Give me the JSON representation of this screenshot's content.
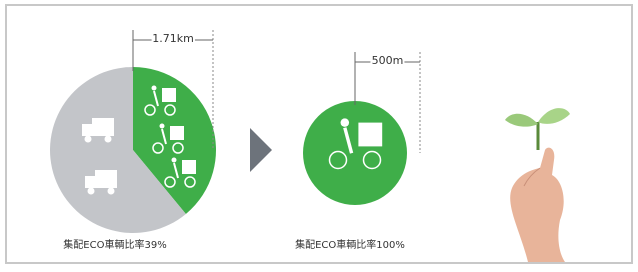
{
  "chart_data": [
    {
      "type": "pie",
      "caption": "集配ECO車輌比率39%",
      "annotation": "1.71km",
      "values": [
        39,
        61
      ],
      "colors": [
        "#3fae49",
        "#c3c5c9"
      ]
    },
    {
      "type": "pie",
      "caption": "集配ECO車輌比率100%",
      "annotation": "500m",
      "values": [
        100
      ],
      "colors": [
        "#3fae49"
      ]
    }
  ]
}
